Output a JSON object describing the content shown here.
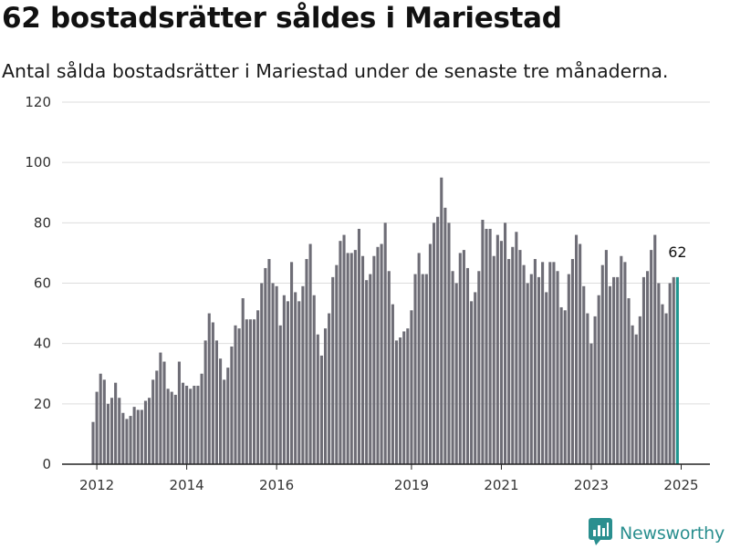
{
  "header": {
    "title": "62 bostadsrätter såldes i Mariestad",
    "subtitle": "Antal sålda bostadsrätter i Mariestad under de senaste tre månaderna."
  },
  "brand": {
    "name": "Newsworthy",
    "logo_icon": "chart-bubble-icon",
    "color": "#2a8f8f"
  },
  "colors": {
    "bar": "#6e6d76",
    "highlight": "#1f9690",
    "grid": "#dddddd",
    "axis": "#222222"
  },
  "chart_data": {
    "type": "bar",
    "title": "62 bostadsrätter såldes i Mariestad",
    "xlabel": "",
    "ylabel": "",
    "ylim": [
      0,
      120
    ],
    "y_ticks": [
      "0",
      "20",
      "40",
      "60",
      "80",
      "100",
      "120"
    ],
    "x_ticks": [
      {
        "label": "2012",
        "date": "2012-01"
      },
      {
        "label": "2014",
        "date": "2014-01"
      },
      {
        "label": "2016",
        "date": "2016-01"
      },
      {
        "label": "2019",
        "date": "2019-01"
      },
      {
        "label": "2021",
        "date": "2021-01"
      },
      {
        "label": "2023",
        "date": "2023-01"
      },
      {
        "label": "2025",
        "date": "2025-01"
      }
    ],
    "grid": true,
    "annotation": {
      "text": "62",
      "date": "2024-12"
    },
    "series": [
      {
        "values": [
          {
            "d": "2011-12",
            "v": 14
          },
          {
            "d": "2012-01",
            "v": 24
          },
          {
            "d": "2012-02",
            "v": 30
          },
          {
            "d": "2012-03",
            "v": 28
          },
          {
            "d": "2012-04",
            "v": 20
          },
          {
            "d": "2012-05",
            "v": 22
          },
          {
            "d": "2012-06",
            "v": 27
          },
          {
            "d": "2012-07",
            "v": 22
          },
          {
            "d": "2012-08",
            "v": 17
          },
          {
            "d": "2012-09",
            "v": 15
          },
          {
            "d": "2012-10",
            "v": 16
          },
          {
            "d": "2012-11",
            "v": 19
          },
          {
            "d": "2012-12",
            "v": 18
          },
          {
            "d": "2013-01",
            "v": 18
          },
          {
            "d": "2013-02",
            "v": 21
          },
          {
            "d": "2013-03",
            "v": 22
          },
          {
            "d": "2013-04",
            "v": 28
          },
          {
            "d": "2013-05",
            "v": 31
          },
          {
            "d": "2013-06",
            "v": 37
          },
          {
            "d": "2013-07",
            "v": 34
          },
          {
            "d": "2013-08",
            "v": 25
          },
          {
            "d": "2013-09",
            "v": 24
          },
          {
            "d": "2013-10",
            "v": 23
          },
          {
            "d": "2013-11",
            "v": 34
          },
          {
            "d": "2013-12",
            "v": 27
          },
          {
            "d": "2014-01",
            "v": 26
          },
          {
            "d": "2014-02",
            "v": 25
          },
          {
            "d": "2014-03",
            "v": 26
          },
          {
            "d": "2014-04",
            "v": 26
          },
          {
            "d": "2014-05",
            "v": 30
          },
          {
            "d": "2014-06",
            "v": 41
          },
          {
            "d": "2014-07",
            "v": 50
          },
          {
            "d": "2014-08",
            "v": 47
          },
          {
            "d": "2014-09",
            "v": 41
          },
          {
            "d": "2014-10",
            "v": 35
          },
          {
            "d": "2014-11",
            "v": 28
          },
          {
            "d": "2014-12",
            "v": 32
          },
          {
            "d": "2015-01",
            "v": 39
          },
          {
            "d": "2015-02",
            "v": 46
          },
          {
            "d": "2015-03",
            "v": 45
          },
          {
            "d": "2015-04",
            "v": 55
          },
          {
            "d": "2015-05",
            "v": 48
          },
          {
            "d": "2015-06",
            "v": 48
          },
          {
            "d": "2015-07",
            "v": 48
          },
          {
            "d": "2015-08",
            "v": 51
          },
          {
            "d": "2015-09",
            "v": 60
          },
          {
            "d": "2015-10",
            "v": 65
          },
          {
            "d": "2015-11",
            "v": 68
          },
          {
            "d": "2015-12",
            "v": 60
          },
          {
            "d": "2016-01",
            "v": 59
          },
          {
            "d": "2016-02",
            "v": 46
          },
          {
            "d": "2016-03",
            "v": 56
          },
          {
            "d": "2016-04",
            "v": 54
          },
          {
            "d": "2016-05",
            "v": 67
          },
          {
            "d": "2016-06",
            "v": 57
          },
          {
            "d": "2016-07",
            "v": 54
          },
          {
            "d": "2016-08",
            "v": 59
          },
          {
            "d": "2016-09",
            "v": 68
          },
          {
            "d": "2016-10",
            "v": 73
          },
          {
            "d": "2016-11",
            "v": 56
          },
          {
            "d": "2016-12",
            "v": 43
          },
          {
            "d": "2017-01",
            "v": 36
          },
          {
            "d": "2017-02",
            "v": 45
          },
          {
            "d": "2017-03",
            "v": 50
          },
          {
            "d": "2017-04",
            "v": 62
          },
          {
            "d": "2017-05",
            "v": 66
          },
          {
            "d": "2017-06",
            "v": 74
          },
          {
            "d": "2017-07",
            "v": 76
          },
          {
            "d": "2017-08",
            "v": 70
          },
          {
            "d": "2017-09",
            "v": 70
          },
          {
            "d": "2017-10",
            "v": 71
          },
          {
            "d": "2017-11",
            "v": 78
          },
          {
            "d": "2017-12",
            "v": 69
          },
          {
            "d": "2018-01",
            "v": 61
          },
          {
            "d": "2018-02",
            "v": 63
          },
          {
            "d": "2018-03",
            "v": 69
          },
          {
            "d": "2018-04",
            "v": 72
          },
          {
            "d": "2018-05",
            "v": 73
          },
          {
            "d": "2018-06",
            "v": 80
          },
          {
            "d": "2018-07",
            "v": 64
          },
          {
            "d": "2018-08",
            "v": 53
          },
          {
            "d": "2018-09",
            "v": 41
          },
          {
            "d": "2018-10",
            "v": 42
          },
          {
            "d": "2018-11",
            "v": 44
          },
          {
            "d": "2018-12",
            "v": 45
          },
          {
            "d": "2019-01",
            "v": 51
          },
          {
            "d": "2019-02",
            "v": 63
          },
          {
            "d": "2019-03",
            "v": 70
          },
          {
            "d": "2019-04",
            "v": 63
          },
          {
            "d": "2019-05",
            "v": 63
          },
          {
            "d": "2019-06",
            "v": 73
          },
          {
            "d": "2019-07",
            "v": 80
          },
          {
            "d": "2019-08",
            "v": 82
          },
          {
            "d": "2019-09",
            "v": 95
          },
          {
            "d": "2019-10",
            "v": 85
          },
          {
            "d": "2019-11",
            "v": 80
          },
          {
            "d": "2019-12",
            "v": 64
          },
          {
            "d": "2020-01",
            "v": 60
          },
          {
            "d": "2020-02",
            "v": 70
          },
          {
            "d": "2020-03",
            "v": 71
          },
          {
            "d": "2020-04",
            "v": 65
          },
          {
            "d": "2020-05",
            "v": 54
          },
          {
            "d": "2020-06",
            "v": 57
          },
          {
            "d": "2020-07",
            "v": 64
          },
          {
            "d": "2020-08",
            "v": 81
          },
          {
            "d": "2020-09",
            "v": 78
          },
          {
            "d": "2020-10",
            "v": 78
          },
          {
            "d": "2020-11",
            "v": 69
          },
          {
            "d": "2020-12",
            "v": 76
          },
          {
            "d": "2021-01",
            "v": 74
          },
          {
            "d": "2021-02",
            "v": 80
          },
          {
            "d": "2021-03",
            "v": 68
          },
          {
            "d": "2021-04",
            "v": 72
          },
          {
            "d": "2021-05",
            "v": 77
          },
          {
            "d": "2021-06",
            "v": 71
          },
          {
            "d": "2021-07",
            "v": 66
          },
          {
            "d": "2021-08",
            "v": 60
          },
          {
            "d": "2021-09",
            "v": 63
          },
          {
            "d": "2021-10",
            "v": 68
          },
          {
            "d": "2021-11",
            "v": 62
          },
          {
            "d": "2021-12",
            "v": 67
          },
          {
            "d": "2022-01",
            "v": 57
          },
          {
            "d": "2022-02",
            "v": 67
          },
          {
            "d": "2022-03",
            "v": 67
          },
          {
            "d": "2022-04",
            "v": 64
          },
          {
            "d": "2022-05",
            "v": 52
          },
          {
            "d": "2022-06",
            "v": 51
          },
          {
            "d": "2022-07",
            "v": 63
          },
          {
            "d": "2022-08",
            "v": 68
          },
          {
            "d": "2022-09",
            "v": 76
          },
          {
            "d": "2022-10",
            "v": 73
          },
          {
            "d": "2022-11",
            "v": 59
          },
          {
            "d": "2022-12",
            "v": 50
          },
          {
            "d": "2023-01",
            "v": 40
          },
          {
            "d": "2023-02",
            "v": 49
          },
          {
            "d": "2023-03",
            "v": 56
          },
          {
            "d": "2023-04",
            "v": 66
          },
          {
            "d": "2023-05",
            "v": 71
          },
          {
            "d": "2023-06",
            "v": 59
          },
          {
            "d": "2023-07",
            "v": 62
          },
          {
            "d": "2023-08",
            "v": 62
          },
          {
            "d": "2023-09",
            "v": 69
          },
          {
            "d": "2023-10",
            "v": 67
          },
          {
            "d": "2023-11",
            "v": 55
          },
          {
            "d": "2023-12",
            "v": 46
          },
          {
            "d": "2024-01",
            "v": 43
          },
          {
            "d": "2024-02",
            "v": 49
          },
          {
            "d": "2024-03",
            "v": 62
          },
          {
            "d": "2024-04",
            "v": 64
          },
          {
            "d": "2024-05",
            "v": 71
          },
          {
            "d": "2024-06",
            "v": 76
          },
          {
            "d": "2024-07",
            "v": 60
          },
          {
            "d": "2024-08",
            "v": 53
          },
          {
            "d": "2024-09",
            "v": 50
          },
          {
            "d": "2024-10",
            "v": 60
          },
          {
            "d": "2024-11",
            "v": 62
          },
          {
            "d": "2024-12",
            "v": 62,
            "highlight": true
          }
        ]
      }
    ]
  }
}
